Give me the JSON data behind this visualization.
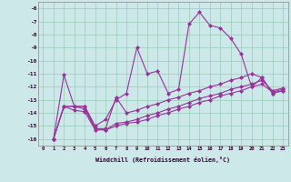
{
  "xlabel": "Windchill (Refroidissement éolien,°C)",
  "background_color": "#cce8e8",
  "grid_color": "#99ccbb",
  "line_color": "#993399",
  "ylim": [
    -16.5,
    -5.5
  ],
  "xlim": [
    -0.5,
    23.5
  ],
  "yticks": [
    -16,
    -15,
    -14,
    -13,
    -12,
    -11,
    -10,
    -9,
    -8,
    -7,
    -6
  ],
  "xticks": [
    0,
    1,
    2,
    3,
    4,
    5,
    6,
    7,
    8,
    9,
    10,
    11,
    12,
    13,
    14,
    15,
    16,
    17,
    18,
    19,
    20,
    21,
    22,
    23
  ],
  "series": [
    [
      null,
      -16.0,
      -11.1,
      -13.5,
      -13.5,
      -15.0,
      -14.5,
      -13.0,
      -12.5,
      -9.0,
      -11.0,
      -10.8,
      -12.5,
      -12.2,
      -7.2,
      -6.3,
      -7.3,
      -7.5,
      -8.3,
      -9.5,
      -12.0,
      -11.3,
      -12.5,
      -12.3
    ],
    [
      null,
      -16.0,
      -13.5,
      -13.5,
      -13.5,
      -15.2,
      -15.2,
      -12.8,
      -14.0,
      -13.8,
      -13.5,
      -13.3,
      -13.0,
      -12.8,
      -12.5,
      -12.3,
      -12.0,
      -11.8,
      -11.5,
      -11.3,
      -11.0,
      -11.3,
      -12.5,
      -12.3
    ],
    [
      null,
      -16.0,
      -13.5,
      -13.5,
      -13.7,
      -15.2,
      -15.3,
      -14.8,
      -14.7,
      -14.5,
      -14.2,
      -14.0,
      -13.7,
      -13.5,
      -13.2,
      -12.9,
      -12.7,
      -12.5,
      -12.2,
      -12.0,
      -11.8,
      -11.5,
      -12.3,
      -12.1
    ],
    [
      null,
      -16.0,
      -13.5,
      -13.8,
      -13.9,
      -15.3,
      -15.3,
      -15.0,
      -14.8,
      -14.7,
      -14.5,
      -14.2,
      -14.0,
      -13.7,
      -13.5,
      -13.2,
      -13.0,
      -12.7,
      -12.5,
      -12.3,
      -12.0,
      -11.8,
      -12.4,
      -12.2
    ]
  ]
}
